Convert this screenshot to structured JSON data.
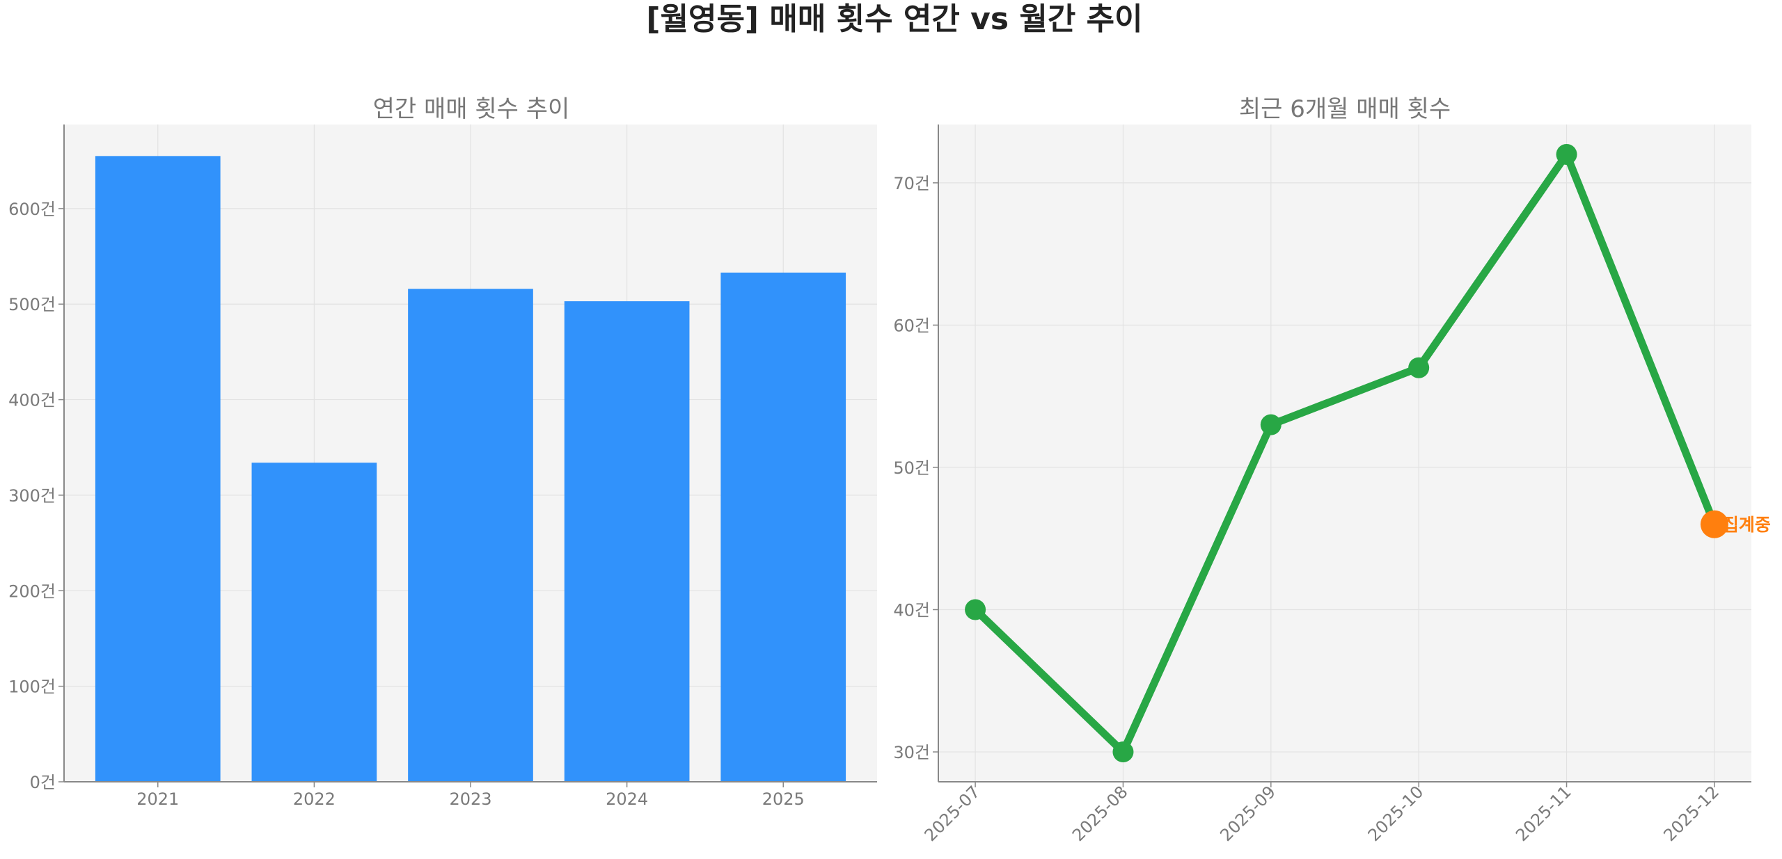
{
  "suptitle": "[월영동] 매매 횟수 연간 vs 월간 추이",
  "colors": {
    "bar": "#3192fb",
    "line": "#28a745",
    "highlight": "#ff7f0e",
    "panel_bg": "#f4f4f4"
  },
  "chart_data": [
    {
      "type": "bar",
      "title": "연간 매매 횟수 추이",
      "categories": [
        "2021",
        "2022",
        "2023",
        "2024",
        "2025"
      ],
      "values": [
        655,
        334,
        516,
        503,
        533
      ],
      "ylim": [
        0,
        688
      ],
      "yticks": [
        0,
        100,
        200,
        300,
        400,
        500,
        600
      ],
      "tick_suffix": "건",
      "grid": true,
      "xlabel": "",
      "ylabel": ""
    },
    {
      "type": "line",
      "title": "최근 6개월 매매 횟수",
      "categories": [
        "2025-07",
        "2025-08",
        "2025-09",
        "2025-10",
        "2025-11",
        "2025-12"
      ],
      "values": [
        40,
        30,
        53,
        57,
        72,
        46
      ],
      "ylim": [
        27.9,
        74.1
      ],
      "yticks": [
        30,
        40,
        50,
        60,
        70
      ],
      "tick_suffix": "건",
      "grid": true,
      "xlabel": "",
      "ylabel": "",
      "annotation": {
        "category": "2025-12",
        "text": "집계중"
      }
    }
  ]
}
